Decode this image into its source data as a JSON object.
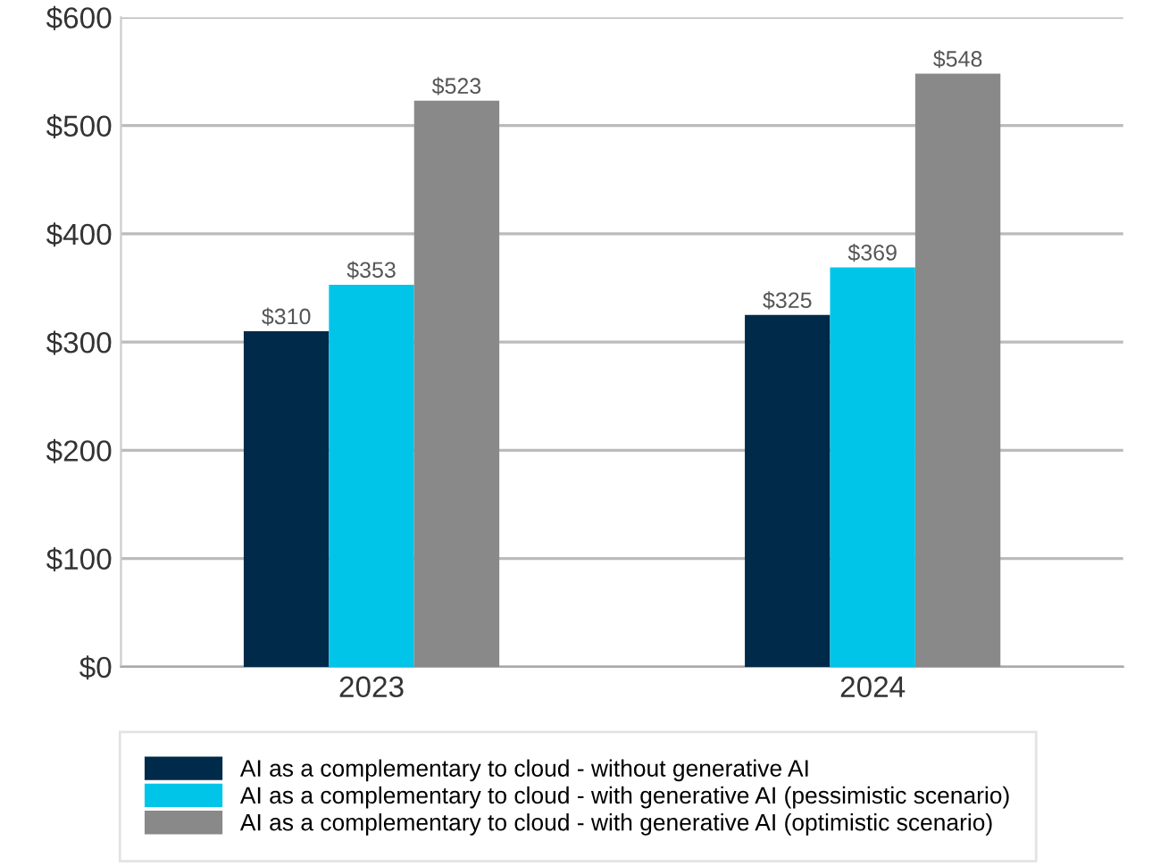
{
  "chart_data": {
    "type": "bar",
    "categories": [
      "2023",
      "2024"
    ],
    "series": [
      {
        "name": "AI as a complementary to cloud - without generative AI",
        "color": "#002a4a",
        "values": [
          310,
          325
        ],
        "value_labels": [
          "$310",
          "$325"
        ]
      },
      {
        "name": "AI as a complementary to cloud - with generative AI (pessimistic scenario)",
        "color": "#00c5e8",
        "values": [
          353,
          369
        ],
        "value_labels": [
          "$353",
          "$369"
        ]
      },
      {
        "name": "AI as a complementary to cloud - with generative AI (optimistic scenario)",
        "color": "#898989",
        "values": [
          523,
          548
        ],
        "value_labels": [
          "$523",
          "$548"
        ]
      }
    ],
    "ylim": [
      0,
      600
    ],
    "yticks": [
      {
        "value": 0,
        "label": "$0"
      },
      {
        "value": 100,
        "label": "$100"
      },
      {
        "value": 200,
        "label": "$200"
      },
      {
        "value": 300,
        "label": "$300"
      },
      {
        "value": 400,
        "label": "$400"
      },
      {
        "value": 500,
        "label": "$500"
      },
      {
        "value": 600,
        "label": "$600"
      }
    ],
    "grid": "y",
    "legend": "bottom"
  }
}
